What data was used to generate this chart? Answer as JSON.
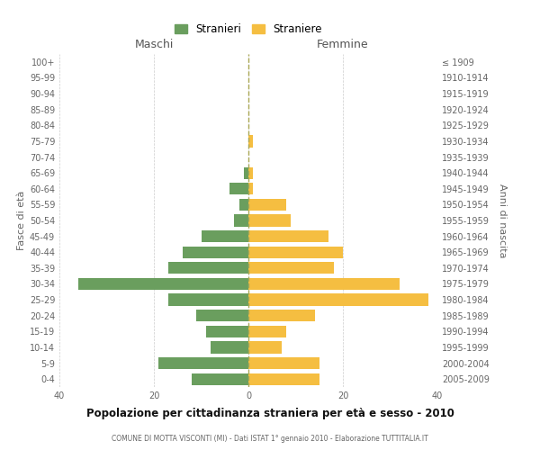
{
  "age_groups": [
    "0-4",
    "5-9",
    "10-14",
    "15-19",
    "20-24",
    "25-29",
    "30-34",
    "35-39",
    "40-44",
    "45-49",
    "50-54",
    "55-59",
    "60-64",
    "65-69",
    "70-74",
    "75-79",
    "80-84",
    "85-89",
    "90-94",
    "95-99",
    "100+"
  ],
  "birth_years": [
    "2005-2009",
    "2000-2004",
    "1995-1999",
    "1990-1994",
    "1985-1989",
    "1980-1984",
    "1975-1979",
    "1970-1974",
    "1965-1969",
    "1960-1964",
    "1955-1959",
    "1950-1954",
    "1945-1949",
    "1940-1944",
    "1935-1939",
    "1930-1934",
    "1925-1929",
    "1920-1924",
    "1915-1919",
    "1910-1914",
    "≤ 1909"
  ],
  "maschi": [
    12,
    19,
    8,
    9,
    11,
    17,
    36,
    17,
    14,
    10,
    3,
    2,
    4,
    1,
    0,
    0,
    0,
    0,
    0,
    0,
    0
  ],
  "femmine": [
    15,
    15,
    7,
    8,
    14,
    38,
    32,
    18,
    20,
    17,
    9,
    8,
    1,
    1,
    0,
    1,
    0,
    0,
    0,
    0,
    0
  ],
  "color_maschi": "#6a9e5e",
  "color_femmine": "#f5be41",
  "title": "Popolazione per cittadinanza straniera per età e sesso - 2010",
  "subtitle": "COMUNE DI MOTTA VISCONTI (MI) - Dati ISTAT 1° gennaio 2010 - Elaborazione TUTTITALIA.IT",
  "xlabel_left": "Maschi",
  "xlabel_right": "Femmine",
  "ylabel_left": "Fasce di età",
  "ylabel_right": "Anni di nascita",
  "legend_maschi": "Stranieri",
  "legend_femmine": "Straniere",
  "xlim": 40,
  "background_color": "#ffffff",
  "grid_color": "#cccccc"
}
